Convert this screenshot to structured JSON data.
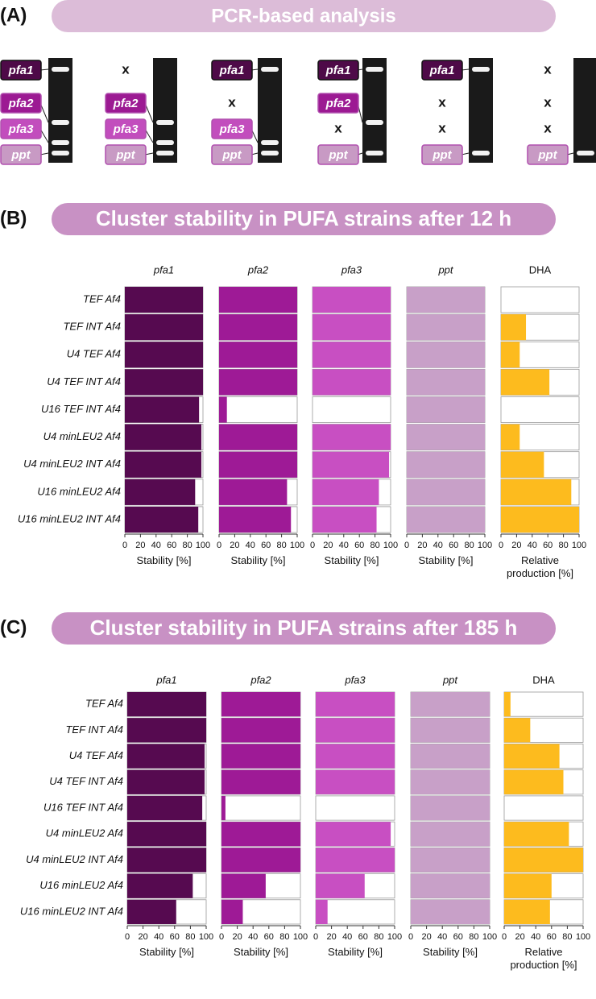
{
  "panel_a": {
    "label": "(A)",
    "title": "PCR-based analysis",
    "genes": [
      "pfa1",
      "pfa2",
      "pfa3",
      "ppt"
    ],
    "gene_colors": [
      "#4e0a48",
      "#9c1a93",
      "#c24dbd",
      "#c89ac4"
    ],
    "absent_mark": "x",
    "lanes": [
      [
        true,
        true,
        true,
        true
      ],
      [
        false,
        true,
        true,
        true
      ],
      [
        true,
        false,
        true,
        true
      ],
      [
        true,
        true,
        false,
        true
      ],
      [
        true,
        false,
        false,
        true
      ],
      [
        false,
        false,
        false,
        true
      ]
    ]
  },
  "chart_data": [
    {
      "type": "bar",
      "orientation": "horizontal",
      "panel_label": "(B)",
      "title": "Cluster stability in PUFA strains after 12 h",
      "categories": [
        "TEF Af4",
        "TEF INT Af4",
        "U4 TEF Af4",
        "U4 TEF INT Af4",
        "U16 TEF INT Af4",
        "U4 minLEU2 Af4",
        "U4 minLEU2 INT Af4",
        "U16 minLEU2 Af4",
        "U16 minLEU2 INT Af4"
      ],
      "xlim": [
        0,
        100
      ],
      "xticks": [
        0,
        20,
        40,
        60,
        80,
        100
      ],
      "series": [
        {
          "name": "pfa1",
          "italic": true,
          "color": "#560a50",
          "xlabel": "Stability [%]",
          "values": [
            100,
            100,
            100,
            100,
            95,
            98,
            98,
            90,
            94
          ]
        },
        {
          "name": "pfa2",
          "italic": true,
          "color": "#9e1a96",
          "xlabel": "Stability [%]",
          "values": [
            100,
            100,
            100,
            100,
            10,
            100,
            100,
            87,
            92
          ]
        },
        {
          "name": "pfa3",
          "italic": true,
          "color": "#c84fc2",
          "xlabel": "Stability [%]",
          "values": [
            100,
            100,
            100,
            100,
            0,
            100,
            98,
            85,
            82
          ]
        },
        {
          "name": "ppt",
          "italic": true,
          "color": "#c8a0c8",
          "xlabel": "Stability [%]",
          "values": [
            100,
            100,
            100,
            100,
            100,
            100,
            100,
            100,
            100
          ]
        },
        {
          "name": "DHA",
          "italic": false,
          "color": "#fdbb1e",
          "xlabel": "Relative production [%]",
          "values": [
            0,
            32,
            24,
            62,
            0,
            24,
            55,
            90,
            100
          ]
        }
      ]
    },
    {
      "type": "bar",
      "orientation": "horizontal",
      "panel_label": "(C)",
      "title": "Cluster stability in PUFA strains after 185 h",
      "categories": [
        "TEF Af4",
        "TEF INT Af4",
        "U4 TEF Af4",
        "U4 TEF INT Af4",
        "U16 TEF INT Af4",
        "U4 minLEU2 Af4",
        "U4 minLEU2 INT Af4",
        "U16 minLEU2 Af4",
        "U16 minLEU2 INT Af4"
      ],
      "xlim": [
        0,
        100
      ],
      "xticks": [
        0,
        20,
        40,
        60,
        80,
        100
      ],
      "series": [
        {
          "name": "pfa1",
          "italic": true,
          "color": "#560a50",
          "xlabel": "Stability [%]",
          "values": [
            100,
            100,
            98,
            98,
            95,
            100,
            100,
            83,
            62
          ]
        },
        {
          "name": "pfa2",
          "italic": true,
          "color": "#9e1a96",
          "xlabel": "Stability [%]",
          "values": [
            100,
            100,
            100,
            100,
            5,
            100,
            100,
            56,
            27
          ]
        },
        {
          "name": "pfa3",
          "italic": true,
          "color": "#c84fc2",
          "xlabel": "Stability [%]",
          "values": [
            100,
            100,
            100,
            100,
            0,
            95,
            100,
            62,
            15
          ]
        },
        {
          "name": "ppt",
          "italic": true,
          "color": "#c8a0c8",
          "xlabel": "Stability [%]",
          "values": [
            100,
            100,
            100,
            100,
            100,
            100,
            100,
            100,
            100
          ]
        },
        {
          "name": "DHA",
          "italic": false,
          "color": "#fdbb1e",
          "xlabel": "Relative production [%]",
          "values": [
            8,
            33,
            70,
            75,
            0,
            82,
            100,
            60,
            58
          ]
        }
      ]
    }
  ]
}
